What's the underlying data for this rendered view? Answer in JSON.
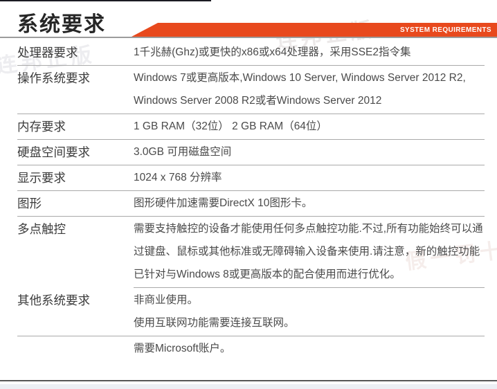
{
  "header": {
    "title": "系统要求",
    "banner": "SYSTEM REQUIREMENTS",
    "accent_color": "#e8491d"
  },
  "watermarks": {
    "w1": "连邦正版",
    "w2": "连邦正版",
    "w3": "假一罚十"
  },
  "table": {
    "rows": [
      {
        "label": "处理器要求",
        "lines": [
          "1千兆赫(Ghz)或更快的x86或x64处理器，采用SSE2指令集"
        ]
      },
      {
        "label": "操作系统要求",
        "lines": [
          "Windows 7或更高版本,Windows 10 Server, Windows Server 2012 R2, Windows Server 2008 R2或者Windows Server 2012"
        ]
      },
      {
        "label": "内存要求",
        "lines": [
          "1 GB RAM（32位） 2 GB RAM（64位）"
        ]
      },
      {
        "label": "硬盘空间要求",
        "lines": [
          "3.0GB 可用磁盘空间"
        ]
      },
      {
        "label": "显示要求",
        "lines": [
          "1024 x 768 分辨率"
        ]
      },
      {
        "label": "图形",
        "lines": [
          "图形硬件加速需要DirectX 10图形卡。"
        ]
      },
      {
        "label": "多点触控",
        "lines": [
          "需要支持触控的设备才能使用任何多点触控功能.不过,所有功能始终可以通过键盘、鼠标或其他标准或无障碍输入设备来使用.请注意，新的触控功能已针对与Windows 8或更高版本的配合使用而进行优化。"
        ]
      },
      {
        "label": "其他系统要求",
        "lines": [
          "非商业使用。",
          "使用互联网功能需要连接互联网。"
        ]
      },
      {
        "label": "",
        "lines": [
          "需要Microsoft账户。"
        ]
      }
    ]
  }
}
